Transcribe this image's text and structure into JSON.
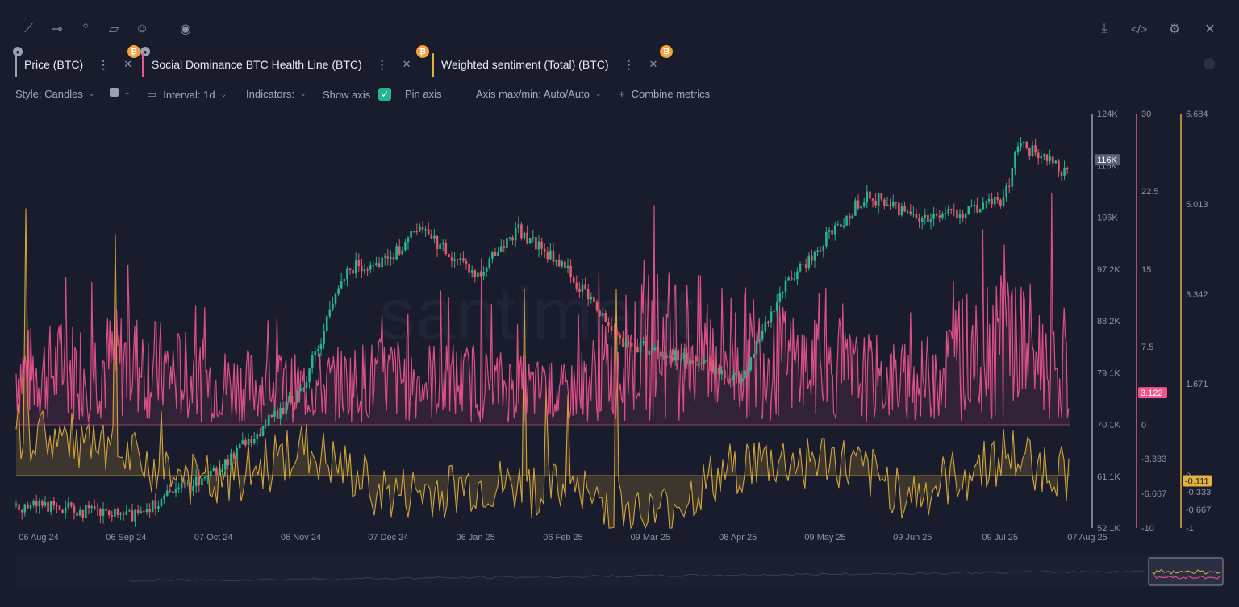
{
  "toolbar": {
    "icons": [
      "line-draw-icon",
      "horizontal-line-icon",
      "vertical-line-icon",
      "note-icon",
      "emoji-icon",
      "eye-icon",
      "download-icon",
      "embed-code-icon",
      "settings-gear-icon",
      "close-icon"
    ],
    "glyph_line": "⟋",
    "glyph_hline": "⊸",
    "glyph_vline": "⫯",
    "glyph_note": "▱",
    "glyph_emoji": "☺",
    "glyph_eye": "◉",
    "glyph_download": "⤓",
    "glyph_code": "</>",
    "glyph_gear": "⚙",
    "glyph_close": "✕"
  },
  "tabs": [
    {
      "label": "Price (BTC)",
      "color": "#9aa0b5"
    },
    {
      "label": "Social Dominance BTC Health Line (BTC)",
      "color": "#f0558f"
    },
    {
      "label": "Weighted sentiment (Total) (BTC)",
      "color": "#e3b23c"
    }
  ],
  "tab_glyphs": {
    "dots": "⋮",
    "close": "✕",
    "coin": "₿",
    "lock": "🔒"
  },
  "controls": {
    "style": "Style: Candles",
    "interval": "Interval: 1d",
    "indicators": "Indicators:",
    "show_axis": "Show axis",
    "pin_axis": "Pin axis",
    "axis_maxmin": "Axis max/min: Auto/Auto",
    "combine": "Combine metrics",
    "plus": "+",
    "chevron": "⌄",
    "check": "✓"
  },
  "colors": {
    "background": "#181c2c",
    "up_candle": "#26b58c",
    "down_candle": "#e25b6b",
    "social": "#f0558f",
    "sentiment": "#e3b23c"
  },
  "chart_data": {
    "type": "line",
    "watermark": "santiment",
    "x_ticks": [
      "06 Aug 24",
      "06 Sep 24",
      "07 Oct 24",
      "06 Nov 24",
      "07 Dec 24",
      "06 Jan 25",
      "06 Feb 25",
      "09 Mar 25",
      "08 Apr 25",
      "09 May 25",
      "09 Jun 25",
      "09 Jul 25",
      "07 Aug 25"
    ],
    "price_axis": {
      "ticks": [
        "124K",
        "115K",
        "106K",
        "97.2K",
        "88.2K",
        "79.1K",
        "70.1K",
        "61.1K",
        "52.1K"
      ],
      "last_label": "116K",
      "ylim": [
        52100,
        124000
      ]
    },
    "social_axis": {
      "ticks": [
        "30",
        "22.5",
        "15",
        "7.5",
        "0",
        "-3.333",
        "-6.667",
        "-10"
      ],
      "last_label": "3.122"
    },
    "sentiment_axis": {
      "ticks": [
        "6.684",
        "5.013",
        "3.342",
        "1.671",
        "0",
        "-0.333",
        "-0.667",
        "-1"
      ],
      "last_label": "-0.111"
    },
    "series": [
      {
        "name": "Price (BTC)",
        "type": "candles",
        "x": [
          "06 Aug 24",
          "06 Sep 24",
          "07 Oct 24",
          "06 Nov 24",
          "21 Nov 24",
          "07 Dec 24",
          "17 Dec 24",
          "06 Jan 25",
          "20 Jan 25",
          "06 Feb 25",
          "27 Feb 25",
          "09 Mar 25",
          "08 Apr 25",
          "22 Apr 25",
          "09 May 25",
          "22 May 25",
          "09 Jun 25",
          "26 Jun 25",
          "09 Jul 25",
          "14 Jul 25",
          "01 Aug 25",
          "07 Aug 25"
        ],
        "values": [
          56000,
          54000,
          62000,
          76000,
          97000,
          99000,
          104000,
          96000,
          104000,
          97000,
          84000,
          83000,
          78000,
          93000,
          103000,
          110000,
          106000,
          107000,
          109000,
          119000,
          113000,
          116000
        ]
      },
      {
        "name": "Social Dominance BTC Health Line (BTC)",
        "x": [
          "06 Aug 24",
          "06 Sep 24",
          "07 Oct 24",
          "06 Nov 24",
          "07 Dec 24",
          "06 Jan 25",
          "06 Feb 25",
          "09 Mar 25",
          "08 Apr 25",
          "09 May 25",
          "09 Jun 25",
          "09 Jul 25",
          "07 Aug 25"
        ],
        "values": [
          5.0,
          6.0,
          4.0,
          3.5,
          4.5,
          4.0,
          3.0,
          8.0,
          7.0,
          5.0,
          4.0,
          9.0,
          3.1
        ]
      },
      {
        "name": "Weighted sentiment (Total) (BTC)",
        "x": [
          "06 Aug 24",
          "06 Sep 24",
          "07 Oct 24",
          "06 Nov 24",
          "07 Dec 24",
          "06 Jan 25",
          "06 Feb 25",
          "09 Mar 25",
          "08 Apr 25",
          "09 May 25",
          "09 Jun 25",
          "09 Jul 25",
          "07 Aug 25"
        ],
        "values": [
          0.8,
          0.3,
          -0.2,
          0.5,
          -0.4,
          -0.2,
          -0.3,
          -0.8,
          0.2,
          0.3,
          -0.4,
          0.4,
          -0.1
        ]
      }
    ]
  }
}
